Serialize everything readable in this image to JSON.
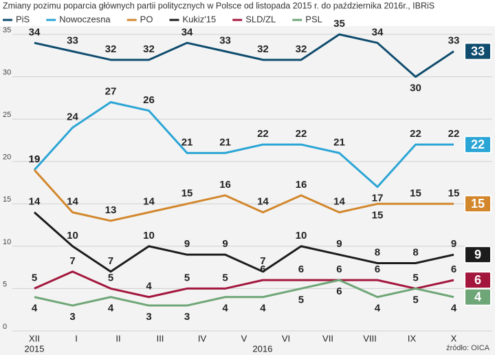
{
  "chart_data": {
    "type": "line",
    "title": "Zmiany pozimu poparcia głównych partii politycznych w Polsce od listopada 2015 r. do października 2016r., IBRiS",
    "source": "źródło: OICA",
    "x": [
      0,
      0.91,
      1.82,
      2.73,
      3.64,
      4.55,
      5.45,
      6.36,
      7.27,
      8.18,
      9.09,
      10
    ],
    "xlim": [
      0,
      10
    ],
    "xticks": [
      {
        "value": 0,
        "label": "XII"
      },
      {
        "value": 1,
        "label": "I"
      },
      {
        "value": 2,
        "label": "II"
      },
      {
        "value": 3,
        "label": "III"
      },
      {
        "value": 4,
        "label": "IV"
      },
      {
        "value": 5,
        "label": "V"
      },
      {
        "value": 6,
        "label": "VI"
      },
      {
        "value": 7,
        "label": "VII"
      },
      {
        "value": 8,
        "label": "VIII"
      },
      {
        "value": 9,
        "label": "IX"
      },
      {
        "value": 10,
        "label": "X"
      }
    ],
    "year_labels": [
      {
        "value": 0,
        "label": "2015"
      },
      {
        "value": 5.44,
        "label": "2016"
      }
    ],
    "ylim": [
      0,
      35
    ],
    "yticks": [
      0,
      5,
      10,
      15,
      20,
      25,
      30,
      35
    ],
    "grid": true,
    "legend": "top",
    "series": [
      {
        "name": "PiS",
        "color": "#0f4c6e",
        "values": [
          34,
          33,
          32,
          32,
          34,
          33,
          32,
          32,
          35,
          34,
          30,
          33
        ]
      },
      {
        "name": "Nowoczesna",
        "color": "#2ba5d5",
        "values": [
          19,
          24,
          27,
          26,
          21,
          21,
          22,
          22,
          21,
          17,
          22,
          22
        ]
      },
      {
        "name": "PO",
        "color": "#d2872c",
        "values": [
          19,
          14,
          13,
          14,
          15,
          16,
          14,
          16,
          14,
          15,
          15,
          15
        ]
      },
      {
        "name": "Kukiz'15",
        "color": "#1c1c1c",
        "values": [
          14,
          10,
          7,
          10,
          9,
          9,
          7,
          10,
          9,
          8,
          8,
          9
        ]
      },
      {
        "name": "SLD/ZL",
        "color": "#a3173d",
        "values": [
          5,
          7,
          5,
          4,
          5,
          5,
          6,
          6,
          6,
          6,
          5,
          6
        ]
      },
      {
        "name": "PSL",
        "color": "#6fa677",
        "values": [
          4,
          3,
          4,
          3,
          3,
          4,
          4,
          5,
          6,
          4,
          5,
          4
        ]
      }
    ]
  }
}
